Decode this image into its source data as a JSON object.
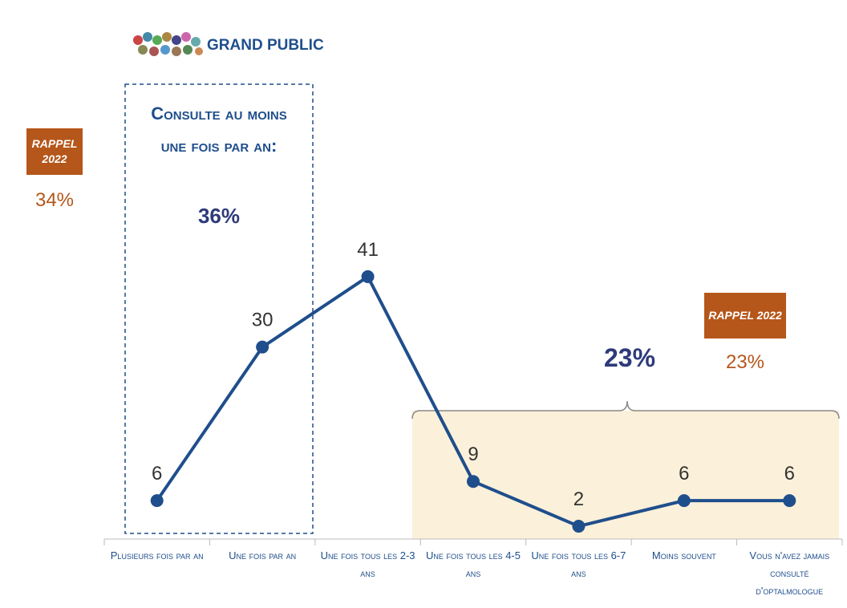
{
  "header": {
    "title": "GRAND PUBLIC"
  },
  "annotations": {
    "left_box_text": "Consulte au moins une fois par an:",
    "left_box_value": "36%",
    "left_rappel": "RAPPEL 2022",
    "left_rappel_value": "34%",
    "right_value": "23%",
    "right_rappel": "RAPPEL 2022",
    "right_rappel_value": "23%"
  },
  "chart_data": {
    "type": "line",
    "categories": [
      "Plusieurs fois par an",
      "Une fois par an",
      "Une fois tous les 2-3 ans",
      "Une fois tous les 4-5 ans",
      "Une fois tous les 6-7 ans",
      "Moins souvent",
      "Vous n'avez jamais consulté d'optalmologue"
    ],
    "values": [
      6,
      30,
      41,
      9,
      2,
      6,
      6
    ],
    "color": "#1f4e8c",
    "ylim": [
      0,
      45
    ]
  }
}
